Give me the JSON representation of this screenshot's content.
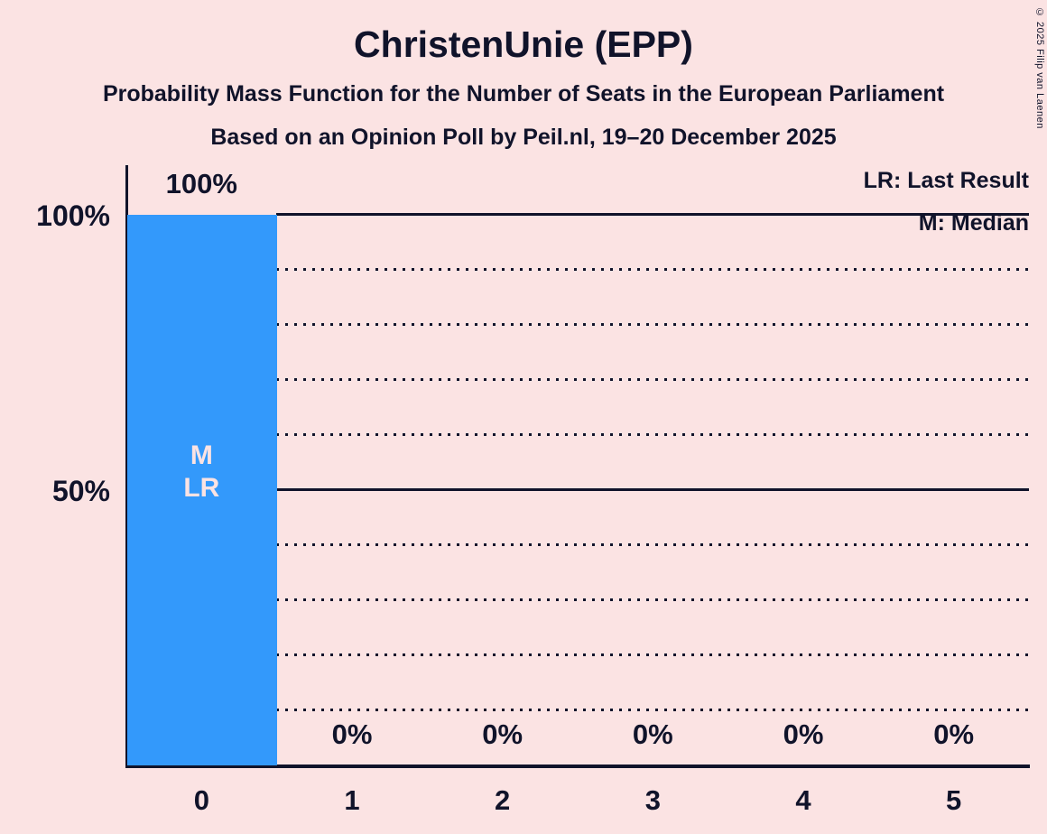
{
  "copyright": "© 2025 Filip van Laenen",
  "colors": {
    "background": "#fbe3e3",
    "bar": "#3399fb",
    "text": "#10132a"
  },
  "chart_data": {
    "type": "bar",
    "title": "ChristenUnie (EPP)",
    "subtitle": "Probability Mass Function for the Number of Seats in the European Parliament",
    "poll_info": "Based on an Opinion Poll by Peil.nl, 19–20 December 2025",
    "categories": [
      "0",
      "1",
      "2",
      "3",
      "4",
      "5"
    ],
    "values": [
      100,
      0,
      0,
      0,
      0,
      0
    ],
    "value_labels": [
      "100%",
      "0%",
      "0%",
      "0%",
      "0%",
      "0%"
    ],
    "ylim": [
      0,
      100
    ],
    "ytick_labels": [
      "100%",
      "50%"
    ],
    "gridlines": {
      "dotted_pct": [
        10,
        20,
        30,
        40,
        60,
        70,
        80,
        90
      ],
      "solid_pct": [
        50,
        100
      ]
    },
    "legend": [
      "LR: Last Result",
      "M: Median"
    ],
    "legend_position": "top-right",
    "annotations": {
      "bar_index": 0,
      "lines": [
        "M",
        "LR"
      ]
    }
  }
}
